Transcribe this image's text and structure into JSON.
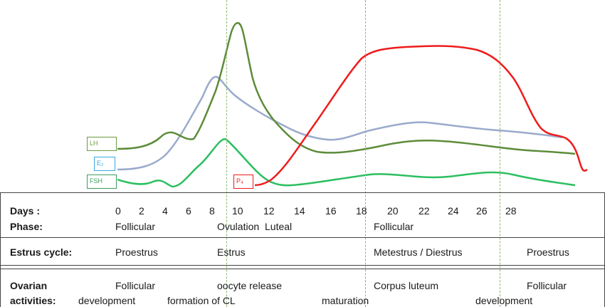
{
  "hormone_labels": {
    "lh": "LH",
    "e2": "E₂",
    "fsh": "FSH",
    "p4": "P₄"
  },
  "colors": {
    "lh": "#5d8c3a",
    "e2": "#9aaacd",
    "fsh": "#2bbf60",
    "p4": "#ee1c1c",
    "e2_box": "#38a9e0",
    "fsh_box": "#3a9e5c",
    "lh_box": "#6a9a3e",
    "marker": "#8db870"
  },
  "table": {
    "days_label": "Days :",
    "phase_label": "Phase:",
    "estrus_label": "Estrus cycle:",
    "ovarian_label_1": "Ovarian",
    "ovarian_label_2": "activities:",
    "days": [
      "0",
      "2",
      "4",
      "6",
      "8",
      "10",
      "12",
      "14",
      "16",
      "18",
      "20",
      "22",
      "24",
      "26",
      "28"
    ],
    "phases": {
      "p1": "Follicular",
      "p2": "Ovulation",
      "p3": "Luteal",
      "p4": "Follicular"
    },
    "estrus": {
      "e1": "Proestrus",
      "e2": "Estrus",
      "e3": "Metestrus / Diestrus",
      "e4": "Proestrus"
    },
    "ovarian_row1": {
      "a": "Follicular",
      "b": "oocyte release",
      "c": "Corpus luteum",
      "d": "Follicular"
    },
    "ovarian_row2": {
      "a": "development",
      "b": "formation of CL",
      "c": "maturation",
      "d": "development"
    }
  }
}
